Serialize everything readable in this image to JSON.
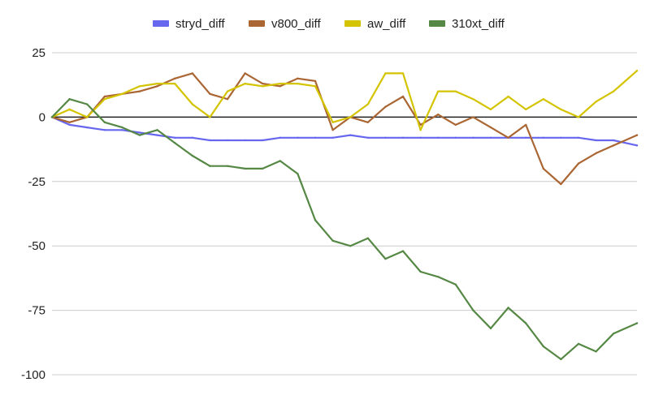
{
  "chart_data": {
    "type": "line",
    "title": "",
    "xlabel": "",
    "ylabel": "",
    "ylim": [
      -100,
      25
    ],
    "yticks": [
      25,
      0,
      -25,
      -50,
      -75,
      -100
    ],
    "ytick_labels": [
      "25",
      "0",
      "-25",
      "-50",
      "-75",
      "-100"
    ],
    "grid": "horizontal",
    "zero_line": true,
    "legend_position": "top-center",
    "x": [
      0,
      0.03,
      0.06,
      0.09,
      0.12,
      0.15,
      0.18,
      0.21,
      0.24,
      0.27,
      0.3,
      0.33,
      0.36,
      0.39,
      0.42,
      0.45,
      0.48,
      0.51,
      0.54,
      0.57,
      0.6,
      0.63,
      0.66,
      0.69,
      0.72,
      0.75,
      0.78,
      0.81,
      0.84,
      0.87,
      0.9,
      0.93,
      0.96,
      1.0
    ],
    "series": [
      {
        "name": "stryd_diff",
        "color": "#6666ee",
        "values": [
          0,
          -3,
          -4,
          -5,
          -5,
          -6,
          -7,
          -8,
          -8,
          -9,
          -9,
          -9,
          -9,
          -8,
          -8,
          -8,
          -8,
          -7,
          -8,
          -8,
          -8,
          -8,
          -8,
          -8,
          -8,
          -8,
          -8,
          -8,
          -8,
          -8,
          -8,
          -9,
          -9,
          -11
        ]
      },
      {
        "name": "v800_diff",
        "color": "#aa6633",
        "values": [
          0,
          -2,
          0,
          8,
          9,
          10,
          12,
          15,
          17,
          9,
          7,
          17,
          13,
          12,
          15,
          14,
          -5,
          0,
          -2,
          4,
          8,
          -3,
          1,
          -3,
          0,
          -4,
          -8,
          -3,
          -20,
          -26,
          -18,
          -14,
          -11,
          -7
        ]
      },
      {
        "name": "aw_diff",
        "color": "#d4c400",
        "values": [
          0,
          3,
          0,
          7,
          9,
          12,
          13,
          13,
          5,
          0,
          10,
          13,
          12,
          13,
          13,
          12,
          -2,
          0,
          5,
          17,
          17,
          -5,
          10,
          10,
          7,
          3,
          8,
          3,
          7,
          3,
          0,
          6,
          10,
          18
        ]
      },
      {
        "name": "310xt_diff",
        "color": "#558844",
        "values": [
          0,
          7,
          5,
          -2,
          -4,
          -7,
          -5,
          -10,
          -15,
          -19,
          -19,
          -20,
          -20,
          -17,
          -22,
          -40,
          -48,
          -50,
          -47,
          -55,
          -52,
          -60,
          -62,
          -65,
          -75,
          -82,
          -74,
          -80,
          -89,
          -94,
          -88,
          -91,
          -84,
          -80
        ]
      }
    ]
  }
}
